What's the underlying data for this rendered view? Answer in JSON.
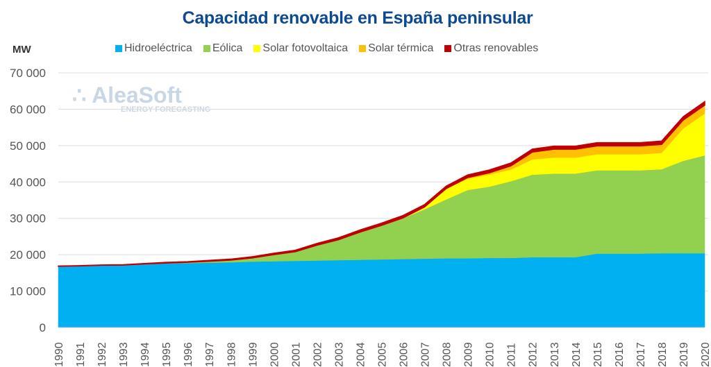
{
  "chart_data": {
    "type": "area",
    "stacked": true,
    "title": "Capacidad renovable en España peninsular",
    "ylabel": "MW",
    "xlabel": "",
    "ylim": [
      0,
      70000
    ],
    "yticks": [
      "0",
      "10 000",
      "20 000",
      "30 000",
      "40 000",
      "50 000",
      "60 000",
      "70 000"
    ],
    "grid": true,
    "legend_position": "top",
    "categories": [
      "1990",
      "1991",
      "1992",
      "1993",
      "1994",
      "1995",
      "1996",
      "1997",
      "1998",
      "1999",
      "2000",
      "2001",
      "2002",
      "2003",
      "2004",
      "2005",
      "2006",
      "2007",
      "2008",
      "2009",
      "2010",
      "2011",
      "2012",
      "2013",
      "2014",
      "2015",
      "2016",
      "2017",
      "2018",
      "2019",
      "2020"
    ],
    "series": [
      {
        "name": "Hidroeléctrica",
        "color": "#00b0f0",
        "values": [
          16800,
          16900,
          17100,
          17100,
          17400,
          17600,
          17700,
          17800,
          17900,
          18100,
          18200,
          18300,
          18400,
          18500,
          18600,
          18700,
          18800,
          18900,
          19000,
          19000,
          19100,
          19100,
          19300,
          19300,
          19300,
          20300,
          20300,
          20300,
          20400,
          20400,
          20400
        ]
      },
      {
        "name": "Eólica",
        "color": "#92d050",
        "values": [
          0,
          0,
          0,
          50,
          50,
          100,
          200,
          400,
          600,
          1000,
          1800,
          2500,
          4200,
          5600,
          7600,
          9300,
          11200,
          13600,
          16200,
          18800,
          19600,
          21100,
          22700,
          23000,
          23000,
          22900,
          22900,
          22900,
          23100,
          25400,
          26900
        ]
      },
      {
        "name": "Solar fotovoltaica",
        "color": "#ffff00",
        "values": [
          0,
          0,
          0,
          0,
          0,
          0,
          0,
          0,
          0,
          0,
          0,
          0,
          0,
          0,
          0,
          50,
          100,
          600,
          2900,
          3100,
          3300,
          3200,
          4200,
          4400,
          4400,
          4400,
          4400,
          4400,
          4500,
          8900,
          11500
        ]
      },
      {
        "name": "Solar térmica",
        "color": "#ffc000",
        "values": [
          0,
          0,
          0,
          0,
          0,
          0,
          0,
          0,
          0,
          0,
          0,
          0,
          0,
          0,
          0,
          0,
          0,
          10,
          60,
          300,
          500,
          1000,
          2000,
          2300,
          2300,
          2300,
          2300,
          2300,
          2300,
          2300,
          2300
        ]
      },
      {
        "name": "Otras renovables",
        "color": "#c00000",
        "values": [
          100,
          100,
          100,
          100,
          150,
          200,
          200,
          250,
          300,
          350,
          400,
          450,
          500,
          550,
          600,
          650,
          700,
          700,
          700,
          750,
          800,
          800,
          850,
          850,
          850,
          900,
          900,
          900,
          950,
          950,
          1000
        ]
      }
    ]
  },
  "watermark": "AleaSoft ENERGY FORECASTING"
}
